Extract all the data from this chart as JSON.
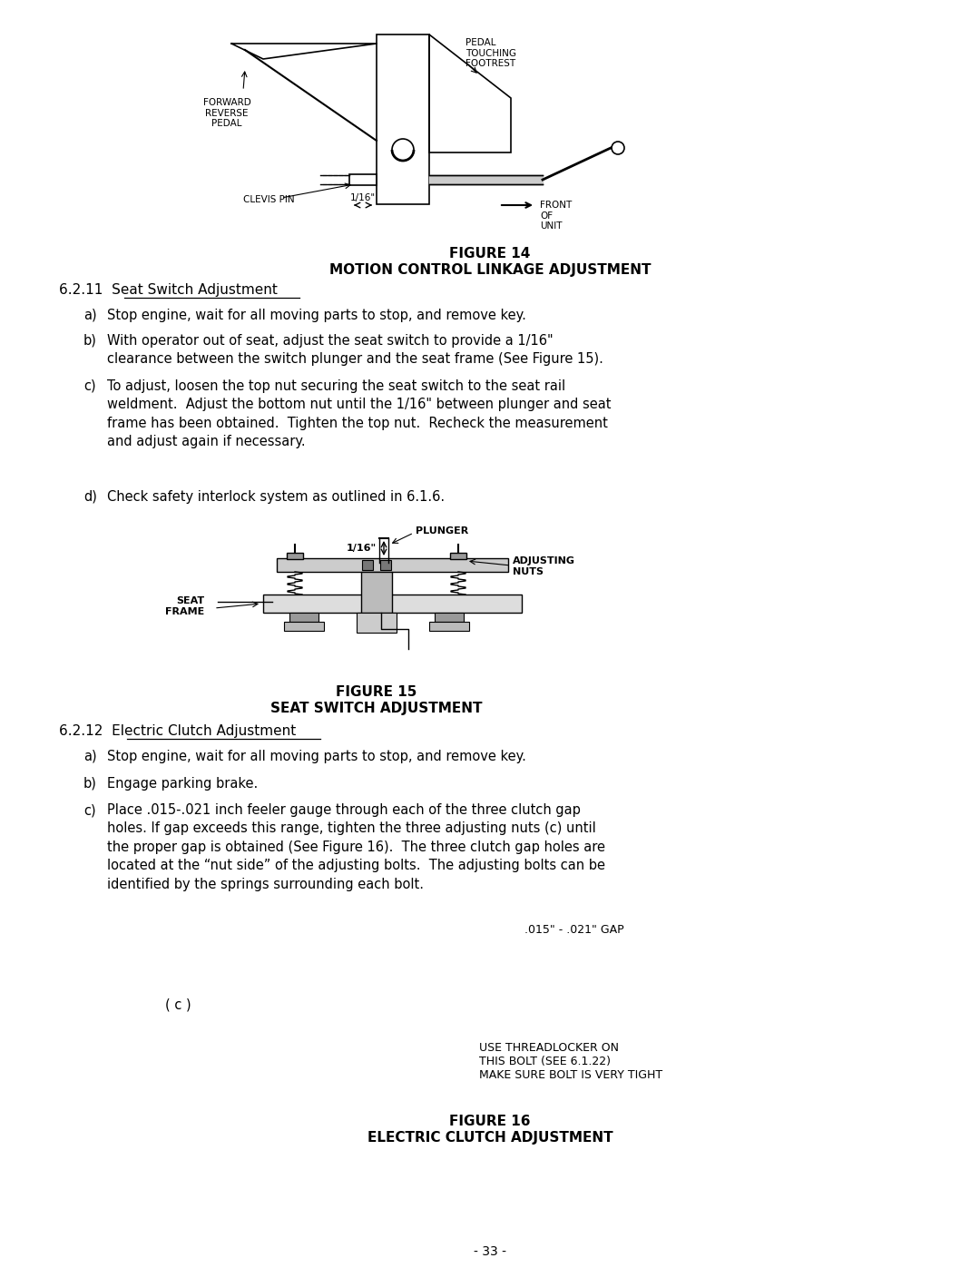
{
  "bg_color": "#ffffff",
  "page_width": 10.8,
  "page_height": 13.97,
  "figure14_title": "FIGURE 14",
  "figure14_subtitle": "MOTION CONTROL LINKAGE ADJUSTMENT",
  "figure15_title": "FIGURE 15",
  "figure15_subtitle": "SEAT SWITCH ADJUSTMENT",
  "figure16_title": "FIGURE 16",
  "figure16_subtitle": "ELECTRIC CLUTCH ADJUSTMENT",
  "s621_a": "Stop engine, wait for all moving parts to stop, and remove key.",
  "s621_b": "With operator out of seat, adjust the seat switch to provide a 1/16\"\nclearance between the switch plunger and the seat frame (See Figure 15).",
  "s621_c": "To adjust, loosen the top nut securing the seat switch to the seat rail\nweldment.  Adjust the bottom nut until the 1/16\" between plunger and seat\nframe has been obtained.  Tighten the top nut.  Recheck the measurement\nand adjust again if necessary.",
  "s621_d": "Check safety interlock system as outlined in 6.1.6.",
  "s622_a": "Stop engine, wait for all moving parts to stop, and remove key.",
  "s622_b": "Engage parking brake.",
  "s622_c": "Place .015-.021 inch feeler gauge through each of the three clutch gap\nholes. If gap exceeds this range, tighten the three adjusting nuts (c) until\nthe proper gap is obtained (See Figure 16).  The three clutch gap holes are\nlocated at the “nut side” of the adjusting bolts.  The adjusting bolts can be\nidentified by the springs surrounding each bolt.",
  "gap_label": ".015\" - .021\" GAP",
  "c_label": "( c )",
  "threadlocker_label": "USE THREADLOCKER ON\nTHIS BOLT (SEE 6.1.22)\nMAKE SURE BOLT IS VERY TIGHT",
  "page_number": "- 33 -"
}
